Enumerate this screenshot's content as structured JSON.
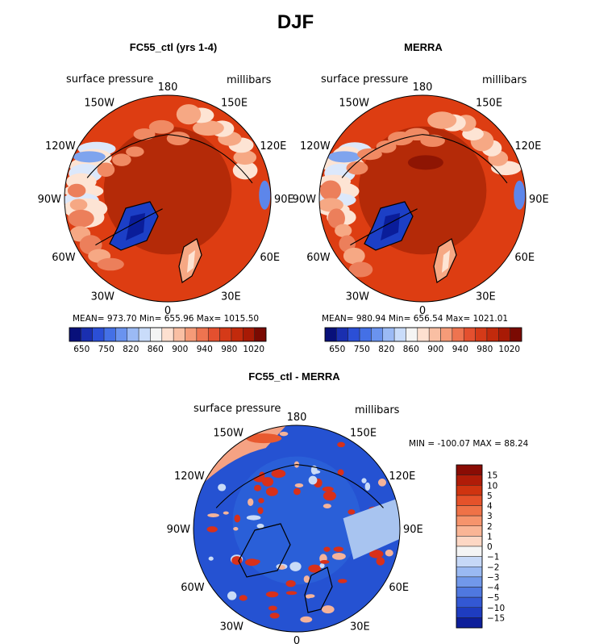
{
  "figure_title": "DJF",
  "colors": {
    "ocean_dark": "#c7300f",
    "arctic": "#a82206",
    "land_light": "#f6a884",
    "land_pale": "#fde4d4",
    "low_blue": "#1c3fc6",
    "diff_blue": "#2d5fd8",
    "diff_light": "#a8c4f0",
    "coast": "#000000"
  },
  "chart_data": [
    {
      "type": "heatmap",
      "title": "FC55_ctl (yrs 1-4)",
      "variable_label": "surface pressure",
      "units_label": "millibars",
      "projection": "north polar stereographic",
      "lon_labels": [
        "180",
        "150E",
        "120E",
        "90E",
        "60E",
        "30E",
        "0",
        "30W",
        "60W",
        "90W",
        "120W",
        "150W"
      ],
      "stats": {
        "mean": 973.7,
        "min": 655.96,
        "max": 1015.5
      },
      "stats_text": "MEAN= 973.70   Min= 655.96   Max= 1015.50",
      "colorbar": {
        "orientation": "horizontal",
        "tick_labels": [
          "650",
          "750",
          "820",
          "860",
          "900",
          "940",
          "980",
          "1020"
        ],
        "colors": [
          "#08107a",
          "#1a2fb0",
          "#2b4fd6",
          "#4470e6",
          "#6a93ef",
          "#9bbaf5",
          "#c9dcfa",
          "#f4f4f4",
          "#fde0d0",
          "#f9bfa3",
          "#f59b78",
          "#ee7450",
          "#e4502f",
          "#d53a18",
          "#c22a0c",
          "#a81a05",
          "#7a0a02"
        ]
      }
    },
    {
      "type": "heatmap",
      "title": "MERRA",
      "variable_label": "surface pressure",
      "units_label": "millibars",
      "projection": "north polar stereographic",
      "lon_labels": [
        "180",
        "150E",
        "120E",
        "90E",
        "60E",
        "30E",
        "0",
        "30W",
        "60W",
        "90W",
        "120W",
        "150W"
      ],
      "stats": {
        "mean": 980.94,
        "min": 656.54,
        "max": 1021.01
      },
      "stats_text": "MEAN= 980.94   Min= 656.54   Max= 1021.01",
      "colorbar": {
        "orientation": "horizontal",
        "tick_labels": [
          "650",
          "750",
          "820",
          "860",
          "900",
          "940",
          "980",
          "1020"
        ],
        "colors": [
          "#08107a",
          "#1a2fb0",
          "#2b4fd6",
          "#4470e6",
          "#6a93ef",
          "#9bbaf5",
          "#c9dcfa",
          "#f4f4f4",
          "#fde0d0",
          "#f9bfa3",
          "#f59b78",
          "#ee7450",
          "#e4502f",
          "#d53a18",
          "#c22a0c",
          "#a81a05",
          "#7a0a02"
        ]
      }
    },
    {
      "type": "heatmap",
      "title": "FC55_ctl - MERRA",
      "variable_label": "surface pressure",
      "units_label": "millibars",
      "projection": "north polar stereographic",
      "lon_labels": [
        "180",
        "150E",
        "120E",
        "90E",
        "60E",
        "30E",
        "0",
        "30W",
        "60W",
        "90W",
        "120W",
        "150W"
      ],
      "stats": {
        "min": -100.07,
        "max": 88.24
      },
      "stats_text": "MIN = -100.07  MAX =  88.24",
      "colorbar": {
        "orientation": "vertical",
        "tick_labels": [
          "15",
          "10",
          "5",
          "4",
          "3",
          "2",
          "1",
          "0",
          "-1",
          "-2",
          "-3",
          "-4",
          "-5",
          "-10",
          "-15"
        ],
        "colors": [
          "#8a0c04",
          "#b01c08",
          "#cf3410",
          "#e5522a",
          "#ef7247",
          "#f6946c",
          "#fab595",
          "#fdd7c4",
          "#f4f4f4",
          "#c6d8f7",
          "#9ab9f2",
          "#7198ea",
          "#4f78e0",
          "#3358d4",
          "#1e3cc0",
          "#0d1e9a"
        ]
      }
    }
  ]
}
